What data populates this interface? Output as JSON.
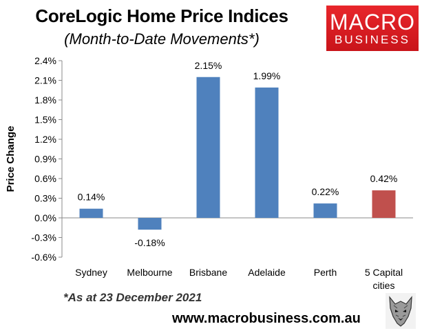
{
  "header": {
    "title": "CoreLogic Home Price Indices",
    "subtitle": "(Month-to-Date Movements*)"
  },
  "logo": {
    "line1": "MACRO",
    "line2": "BUSINESS"
  },
  "footnote": "*As at 23 December 2021",
  "url": "www.macrobusiness.com.au",
  "icons": {
    "mascot": "wolf-icon"
  },
  "colors": {
    "bar": "#4f81bd",
    "highlight": "#c0504d"
  },
  "chart_data": {
    "type": "bar",
    "title": "CoreLogic Home Price Indices",
    "subtitle": "(Month-to-Date Movements*)",
    "ylabel": "Price Change",
    "categories": [
      [
        "Sydney"
      ],
      [
        "Melbourne"
      ],
      [
        "Brisbane"
      ],
      [
        "Adelaide"
      ],
      [
        "Perth"
      ],
      [
        "5 Capital",
        "cities"
      ]
    ],
    "values": [
      0.14,
      -0.18,
      2.15,
      1.99,
      0.22,
      0.42
    ],
    "data_labels": [
      "0.14%",
      "-0.18%",
      "2.15%",
      "1.99%",
      "0.22%",
      "0.42%"
    ],
    "bar_colors": [
      "#4f81bd",
      "#4f81bd",
      "#4f81bd",
      "#4f81bd",
      "#4f81bd",
      "#c0504d"
    ],
    "ylim": [
      -0.6,
      2.4
    ],
    "yticks": [
      2.4,
      2.1,
      1.8,
      1.5,
      1.2,
      0.9,
      0.6,
      0.3,
      0.0,
      -0.3,
      -0.6
    ],
    "ytick_labels": [
      "2.4%",
      "2.1%",
      "1.8%",
      "1.5%",
      "1.2%",
      "0.9%",
      "0.6%",
      "0.3%",
      "0.0%",
      "-0.3%",
      "-0.6%"
    ],
    "grid": false,
    "legend": "none"
  }
}
